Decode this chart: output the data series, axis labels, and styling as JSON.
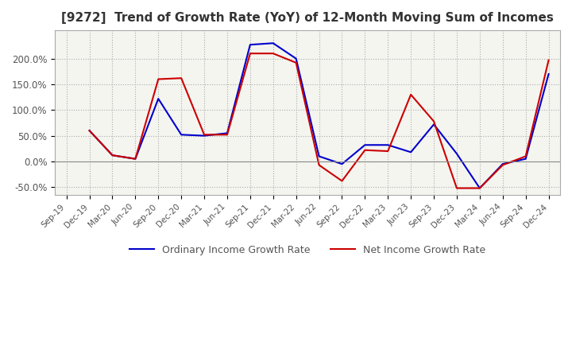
{
  "title": "[9272]  Trend of Growth Rate (YoY) of 12-Month Moving Sum of Incomes",
  "title_fontsize": 11,
  "ylim": [
    -0.65,
    2.55
  ],
  "yticks": [
    -0.5,
    0.0,
    0.5,
    1.0,
    1.5,
    2.0
  ],
  "ytick_labels": [
    "-50.0%",
    "0.0%",
    "50.0%",
    "100.0%",
    "150.0%",
    "200.0%"
  ],
  "line_color_ordinary": "#0000cc",
  "line_color_net": "#cc0000",
  "legend_labels": [
    "Ordinary Income Growth Rate",
    "Net Income Growth Rate"
  ],
  "background_color": "#ffffff",
  "plot_bg_color": "#f5f5f0",
  "grid_color": "#aaaaaa",
  "dates": [
    "Sep-19",
    "Dec-19",
    "Mar-20",
    "Jun-20",
    "Sep-20",
    "Dec-20",
    "Mar-21",
    "Jun-21",
    "Sep-21",
    "Dec-21",
    "Mar-22",
    "Jun-22",
    "Sep-22",
    "Dec-22",
    "Mar-23",
    "Jun-23",
    "Sep-23",
    "Dec-23",
    "Mar-24",
    "Jun-24",
    "Sep-24",
    "Dec-24"
  ],
  "ordinary_income_growth": [
    null,
    0.6,
    0.12,
    0.05,
    1.22,
    0.52,
    0.5,
    0.55,
    2.27,
    2.3,
    2.0,
    0.1,
    -0.05,
    0.32,
    0.32,
    0.18,
    0.72,
    0.15,
    -0.52,
    -0.05,
    0.05,
    1.7
  ],
  "net_income_growth": [
    null,
    0.6,
    0.12,
    0.05,
    1.6,
    1.62,
    0.52,
    0.52,
    2.1,
    2.1,
    1.92,
    -0.07,
    -0.38,
    0.22,
    0.2,
    1.3,
    0.78,
    -0.52,
    -0.52,
    -0.07,
    0.1,
    1.97
  ]
}
